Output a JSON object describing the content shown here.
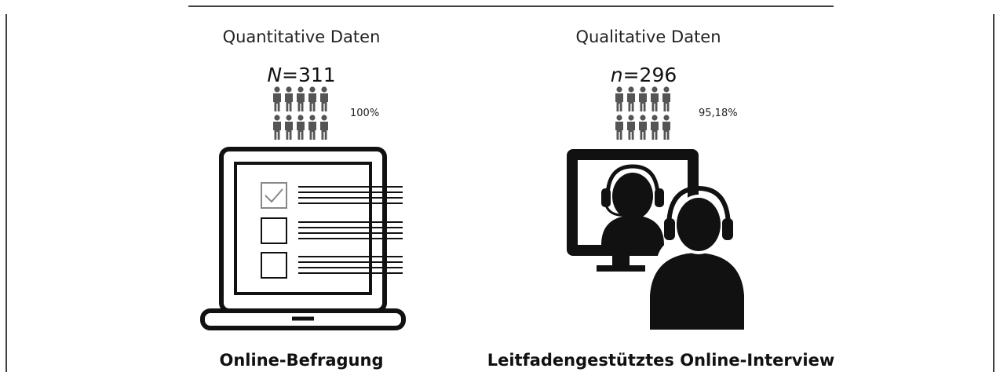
{
  "columns": [
    {
      "heading": "Quantitative Daten",
      "sample": {
        "symbol": "N",
        "relation": "=",
        "size": 311
      },
      "share": "100%",
      "label": "Online-Befragung"
    },
    {
      "heading": "Qualitative Daten",
      "sample": {
        "symbol": "n",
        "relation": "=",
        "size": 296
      },
      "share": "95,18%",
      "label": "Leitfadengestütztes Online-Interview"
    }
  ]
}
